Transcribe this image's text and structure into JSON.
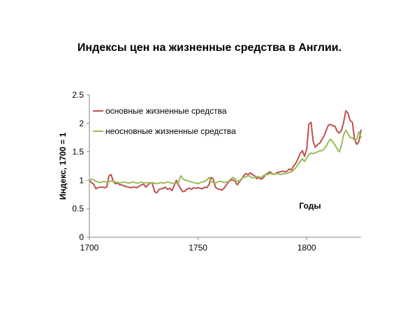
{
  "slide": {
    "title": "Индексы цен на жизненные средства в Англии."
  },
  "chart_data": {
    "type": "line",
    "title": "Индексы цен на жизненные средства в Англии.",
    "xlabel": "Годы",
    "ylabel": "Индекс, 1700 = 1",
    "xlim": [
      1700,
      1825
    ],
    "ylim": [
      0,
      2.5
    ],
    "x_ticks": [
      "1700",
      "1750",
      "1800"
    ],
    "y_ticks": [
      "0",
      "0.5",
      "1",
      "1.5",
      "2",
      "2.5"
    ],
    "grid": false,
    "legend_position": "top-left",
    "series": [
      {
        "name": "основные жизненные средства",
        "color": "#c0504d",
        "x": [
          1700,
          1701,
          1702,
          1703,
          1704,
          1705,
          1706,
          1707,
          1708,
          1709,
          1710,
          1711,
          1712,
          1713,
          1714,
          1715,
          1716,
          1717,
          1718,
          1719,
          1720,
          1721,
          1722,
          1723,
          1724,
          1725,
          1726,
          1727,
          1728,
          1729,
          1730,
          1731,
          1732,
          1733,
          1734,
          1735,
          1736,
          1737,
          1738,
          1739,
          1740,
          1741,
          1742,
          1743,
          1744,
          1745,
          1746,
          1747,
          1748,
          1749,
          1750,
          1751,
          1752,
          1753,
          1754,
          1755,
          1756,
          1757,
          1758,
          1759,
          1760,
          1761,
          1762,
          1763,
          1764,
          1765,
          1766,
          1767,
          1768,
          1769,
          1770,
          1771,
          1772,
          1773,
          1774,
          1775,
          1776,
          1777,
          1778,
          1779,
          1780,
          1781,
          1782,
          1783,
          1784,
          1785,
          1786,
          1787,
          1788,
          1789,
          1790,
          1791,
          1792,
          1793,
          1794,
          1795,
          1796,
          1797,
          1798,
          1799,
          1800,
          1801,
          1802,
          1803,
          1804,
          1805,
          1806,
          1807,
          1808,
          1809,
          1810,
          1811,
          1812,
          1813,
          1814,
          1815,
          1816,
          1817,
          1818,
          1819,
          1820,
          1821,
          1822,
          1823,
          1824,
          1825
        ],
        "values": [
          1.0,
          0.96,
          0.93,
          0.85,
          0.87,
          0.88,
          0.88,
          0.87,
          0.88,
          1.08,
          1.1,
          0.98,
          0.94,
          0.95,
          0.92,
          0.92,
          0.9,
          0.89,
          0.88,
          0.87,
          0.88,
          0.88,
          0.87,
          0.9,
          0.92,
          0.93,
          0.88,
          0.92,
          0.96,
          0.94,
          0.8,
          0.78,
          0.84,
          0.85,
          0.86,
          0.88,
          0.84,
          0.86,
          0.82,
          0.91,
          1.0,
          0.92,
          0.85,
          0.8,
          0.81,
          0.85,
          0.86,
          0.84,
          0.87,
          0.86,
          0.87,
          0.86,
          0.85,
          0.88,
          0.87,
          0.92,
          1.05,
          1.02,
          0.88,
          0.85,
          0.84,
          0.83,
          0.86,
          0.92,
          0.97,
          1.0,
          1.01,
          0.98,
          0.92,
          0.97,
          1.02,
          1.08,
          1.12,
          1.1,
          1.13,
          1.1,
          1.08,
          1.03,
          1.05,
          1.02,
          1.04,
          1.1,
          1.12,
          1.15,
          1.12,
          1.1,
          1.13,
          1.14,
          1.15,
          1.16,
          1.15,
          1.16,
          1.2,
          1.18,
          1.25,
          1.3,
          1.38,
          1.47,
          1.52,
          1.42,
          1.55,
          1.98,
          2.02,
          1.68,
          1.58,
          1.63,
          1.65,
          1.72,
          1.78,
          1.88,
          1.97,
          1.98,
          1.96,
          1.95,
          1.86,
          1.83,
          1.88,
          2.02,
          2.22,
          2.18,
          2.05,
          2.02,
          1.72,
          1.63,
          1.68,
          1.88
        ]
      },
      {
        "name": "неосновные жизненные средства",
        "color": "#9bbb59",
        "x": [
          1700,
          1701,
          1702,
          1703,
          1704,
          1705,
          1706,
          1707,
          1708,
          1709,
          1710,
          1711,
          1712,
          1713,
          1714,
          1715,
          1716,
          1717,
          1718,
          1719,
          1720,
          1721,
          1722,
          1723,
          1724,
          1725,
          1726,
          1727,
          1728,
          1729,
          1730,
          1731,
          1732,
          1733,
          1734,
          1735,
          1736,
          1737,
          1738,
          1739,
          1740,
          1741,
          1742,
          1743,
          1744,
          1745,
          1746,
          1747,
          1748,
          1749,
          1750,
          1751,
          1752,
          1753,
          1754,
          1755,
          1756,
          1757,
          1758,
          1759,
          1760,
          1761,
          1762,
          1763,
          1764,
          1765,
          1766,
          1767,
          1768,
          1769,
          1770,
          1771,
          1772,
          1773,
          1774,
          1775,
          1776,
          1777,
          1778,
          1779,
          1780,
          1781,
          1782,
          1783,
          1784,
          1785,
          1786,
          1787,
          1788,
          1789,
          1790,
          1791,
          1792,
          1793,
          1794,
          1795,
          1796,
          1797,
          1798,
          1799,
          1800,
          1801,
          1802,
          1803,
          1804,
          1805,
          1806,
          1807,
          1808,
          1809,
          1810,
          1811,
          1812,
          1813,
          1814,
          1815,
          1816,
          1817,
          1818,
          1819,
          1820,
          1821,
          1822,
          1823,
          1824,
          1825
        ],
        "values": [
          1.0,
          1.02,
          1.01,
          0.98,
          0.97,
          0.96,
          0.97,
          0.98,
          0.96,
          0.97,
          0.99,
          0.98,
          0.97,
          0.96,
          0.96,
          0.96,
          0.97,
          0.96,
          0.95,
          0.96,
          0.97,
          0.96,
          0.95,
          0.96,
          0.97,
          0.95,
          0.96,
          0.96,
          0.95,
          0.96,
          0.95,
          0.94,
          0.95,
          0.96,
          0.95,
          0.96,
          0.97,
          0.96,
          0.95,
          0.94,
          0.95,
          0.96,
          1.08,
          1.03,
          1.0,
          1.0,
          0.98,
          0.97,
          0.96,
          0.95,
          0.94,
          0.96,
          0.97,
          0.98,
          1.0,
          1.05,
          0.98,
          0.96,
          0.95,
          0.97,
          0.98,
          0.98,
          0.96,
          0.97,
          0.98,
          1.02,
          1.05,
          1.03,
          0.98,
          0.99,
          1.03,
          1.05,
          1.06,
          1.08,
          1.07,
          1.04,
          1.05,
          1.07,
          1.06,
          1.05,
          1.08,
          1.1,
          1.1,
          1.12,
          1.11,
          1.1,
          1.12,
          1.11,
          1.1,
          1.11,
          1.12,
          1.12,
          1.14,
          1.15,
          1.18,
          1.22,
          1.28,
          1.33,
          1.38,
          1.33,
          1.39,
          1.45,
          1.48,
          1.47,
          1.48,
          1.5,
          1.52,
          1.52,
          1.55,
          1.6,
          1.68,
          1.72,
          1.68,
          1.62,
          1.55,
          1.5,
          1.62,
          1.8,
          1.88,
          1.82,
          1.75,
          1.75,
          1.7,
          1.72,
          1.85,
          1.75
        ]
      }
    ]
  }
}
